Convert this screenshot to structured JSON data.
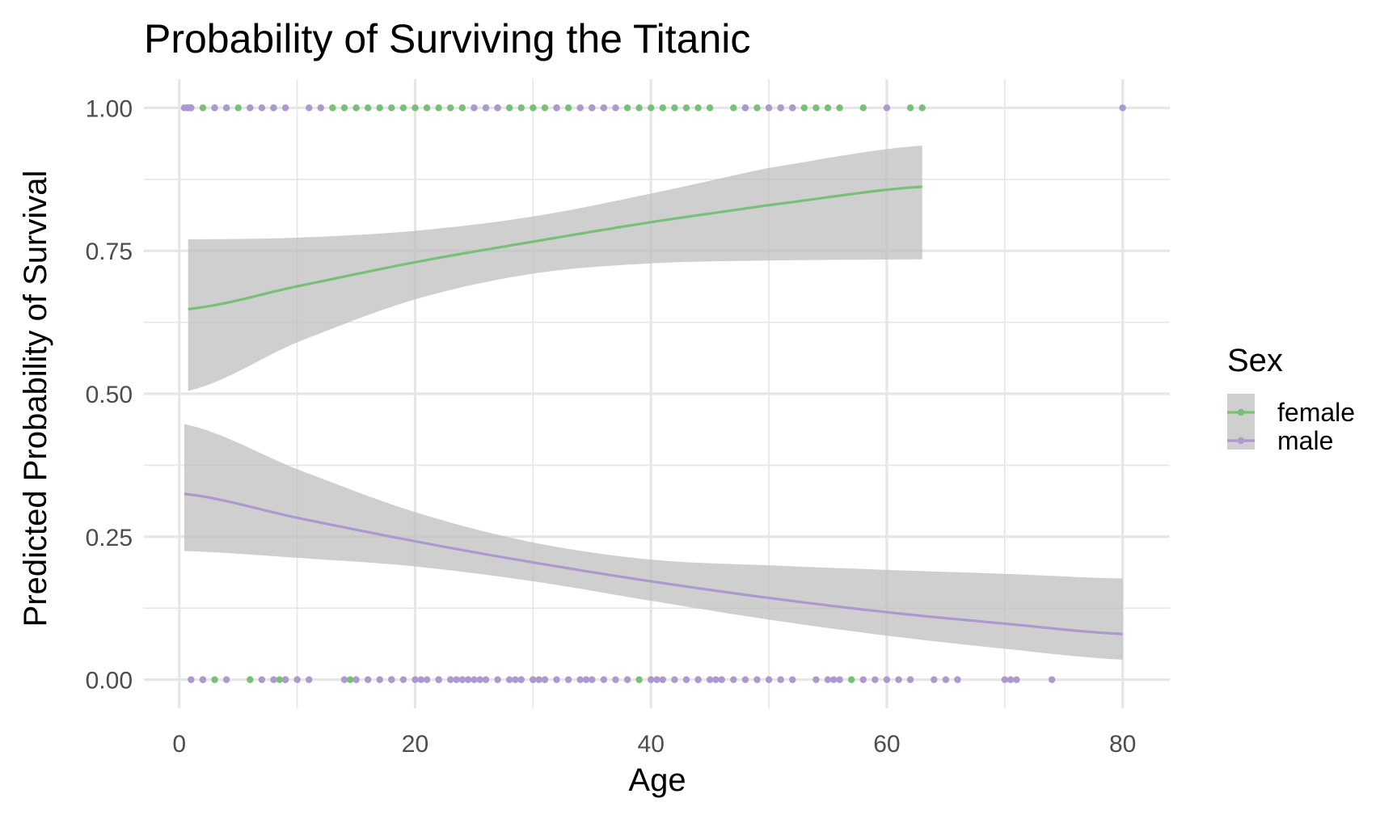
{
  "chart_data": {
    "type": "scatter",
    "title": "Probability of Surviving the Titanic",
    "xlabel": "Age",
    "ylabel": "Predicted Probability of Survival",
    "xlim": [
      -3,
      84
    ],
    "ylim": [
      -0.05,
      1.05
    ],
    "x_ticks": [
      0,
      20,
      40,
      60,
      80
    ],
    "x_tick_labels": [
      "0",
      "20",
      "40",
      "60",
      "80"
    ],
    "y_ticks": [
      0,
      0.25,
      0.5,
      0.75,
      1
    ],
    "y_tick_labels": [
      "0.00",
      "0.25",
      "0.50",
      "0.75",
      "1.00"
    ],
    "grid": true,
    "legend": {
      "title": "Sex",
      "position": "right",
      "entries": [
        "female",
        "male"
      ]
    },
    "colors": {
      "female": "#77c075",
      "male": "#ad98cf",
      "ribbon": "#bdbdbd",
      "grid": "#e6e6e6"
    },
    "series": [
      {
        "name": "female",
        "x_range": [
          0.75,
          63
        ],
        "fit": [
          [
            0.75,
            0.648
          ],
          [
            10,
            0.688
          ],
          [
            20,
            0.73
          ],
          [
            30,
            0.766
          ],
          [
            40,
            0.8
          ],
          [
            50,
            0.83
          ],
          [
            63,
            0.862
          ]
        ],
        "ci_lower": [
          [
            0.75,
            0.505
          ],
          [
            10,
            0.59
          ],
          [
            20,
            0.665
          ],
          [
            30,
            0.71
          ],
          [
            40,
            0.728
          ],
          [
            50,
            0.733
          ],
          [
            63,
            0.735
          ]
        ],
        "ci_upper": [
          [
            0.75,
            0.77
          ],
          [
            10,
            0.773
          ],
          [
            20,
            0.785
          ],
          [
            30,
            0.81
          ],
          [
            40,
            0.85
          ],
          [
            50,
            0.895
          ],
          [
            63,
            0.934
          ]
        ],
        "survived_ages": [
          0.75,
          1,
          2,
          3,
          4,
          5,
          6,
          8,
          13,
          14,
          15,
          16,
          17,
          18,
          19,
          20,
          21,
          22,
          23,
          24,
          25,
          26,
          27,
          28,
          29,
          30,
          31,
          32,
          33,
          35,
          36,
          38,
          39,
          40,
          41,
          42,
          43,
          44,
          45,
          47,
          48,
          49,
          50,
          51,
          52,
          53,
          54,
          55,
          56,
          58,
          62,
          63
        ],
        "died_ages": [
          2,
          3,
          6,
          8.5,
          9,
          14.5,
          18,
          22,
          24,
          30,
          31,
          39,
          44,
          57
        ]
      },
      {
        "name": "male",
        "x_range": [
          0.42,
          80
        ],
        "fit": [
          [
            0.42,
            0.325
          ],
          [
            10,
            0.283
          ],
          [
            20,
            0.242
          ],
          [
            30,
            0.205
          ],
          [
            40,
            0.172
          ],
          [
            50,
            0.143
          ],
          [
            60,
            0.118
          ],
          [
            70,
            0.098
          ],
          [
            80,
            0.08
          ]
        ],
        "ci_lower": [
          [
            0.42,
            0.225
          ],
          [
            10,
            0.213
          ],
          [
            20,
            0.198
          ],
          [
            30,
            0.172
          ],
          [
            40,
            0.138
          ],
          [
            50,
            0.105
          ],
          [
            60,
            0.077
          ],
          [
            70,
            0.054
          ],
          [
            80,
            0.035
          ]
        ],
        "ci_upper": [
          [
            0.42,
            0.447
          ],
          [
            10,
            0.368
          ],
          [
            20,
            0.293
          ],
          [
            30,
            0.24
          ],
          [
            40,
            0.21
          ],
          [
            50,
            0.2
          ],
          [
            60,
            0.192
          ],
          [
            70,
            0.185
          ],
          [
            80,
            0.177
          ]
        ],
        "survived_ages": [
          0.42,
          0.67,
          0.83,
          0.92,
          1,
          3,
          4,
          6,
          7,
          8,
          9,
          11,
          12,
          25,
          26,
          27,
          32,
          34,
          35,
          36,
          37,
          48,
          50,
          51,
          52,
          60,
          80
        ],
        "died_ages": [
          1,
          2,
          4,
          7,
          8,
          9,
          10,
          11,
          14,
          15,
          16,
          17,
          18,
          19,
          20,
          20.5,
          21,
          22,
          23,
          23.5,
          24,
          24.5,
          25,
          25.5,
          26,
          27,
          28,
          28.5,
          29,
          30,
          30.5,
          31,
          32,
          33,
          34,
          34.5,
          35,
          36,
          37,
          38,
          40,
          40.5,
          41,
          42,
          43,
          44,
          45,
          45.5,
          46,
          47,
          48,
          49,
          50,
          51,
          52,
          54,
          55,
          55.5,
          56,
          58,
          59,
          60,
          61,
          62,
          64,
          65,
          66,
          70,
          70.5,
          71,
          74
        ]
      }
    ]
  }
}
